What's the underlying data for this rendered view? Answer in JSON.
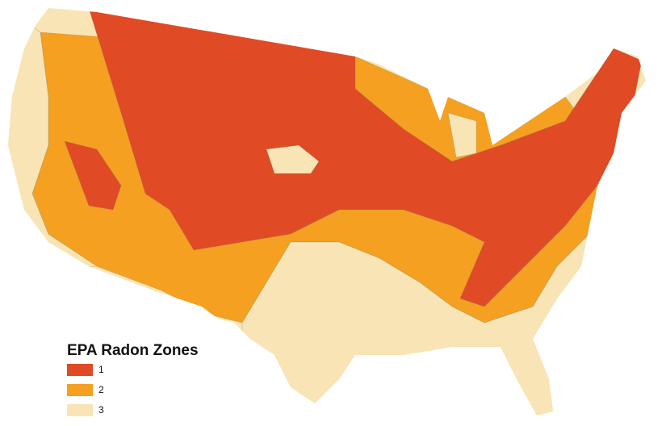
{
  "legend": {
    "title": "EPA Radon Zones",
    "items": [
      {
        "label": "1",
        "color": "#e04a25"
      },
      {
        "label": "2",
        "color": "#f5a020"
      },
      {
        "label": "3",
        "color": "#f8e4b4"
      }
    ]
  }
}
